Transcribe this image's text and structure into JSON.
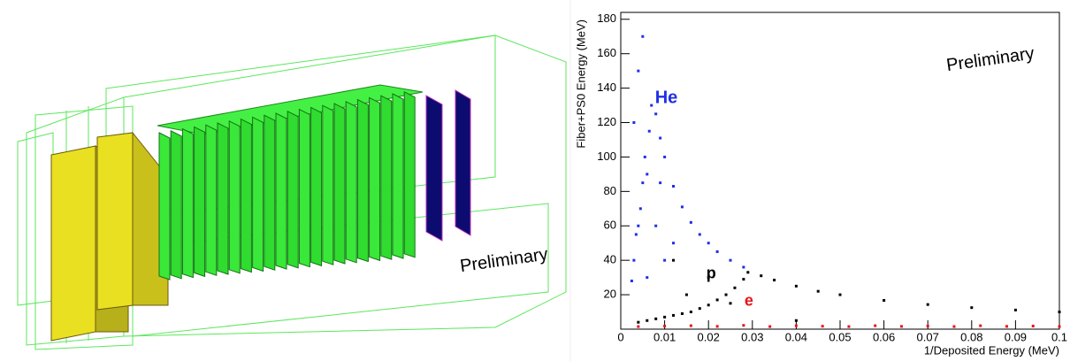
{
  "detector_view": {
    "label": "Preliminary"
  },
  "chart_data": {
    "type": "scatter",
    "x_label": "1/Deposited Energy (MeV)",
    "y_label": "Fiber+PS0 Energy (MeV)",
    "annotation": "Preliminary",
    "xlim": [
      0,
      0.1
    ],
    "xticks": [
      0,
      0.01,
      0.02,
      0.03,
      0.04,
      0.05,
      0.06,
      0.07,
      0.08,
      0.09,
      0.1
    ],
    "ylim": [
      0,
      184
    ],
    "yticks": [
      20,
      40,
      60,
      80,
      100,
      120,
      140,
      160,
      180
    ],
    "series": [
      {
        "name": "He",
        "color": "#1f2fe6",
        "x": [
          0.0025,
          0.003,
          0.0035,
          0.0045,
          0.005,
          0.0055,
          0.0065,
          0.007,
          0.008,
          0.009,
          0.01,
          0.012,
          0.014,
          0.016,
          0.018,
          0.02,
          0.022,
          0.025,
          0.028,
          0.004,
          0.005,
          0.003,
          0.006,
          0.004,
          0.008,
          0.01,
          0.006,
          0.012,
          0.009
        ],
        "y": [
          28,
          40,
          55,
          70,
          85,
          100,
          115,
          130,
          125,
          111,
          100,
          83,
          71,
          62,
          55,
          50,
          45,
          40,
          36,
          150,
          170,
          120,
          90,
          60,
          60,
          40,
          30,
          50,
          85
        ]
      },
      {
        "name": "p",
        "color": "#000000",
        "x": [
          0.004,
          0.006,
          0.008,
          0.01,
          0.012,
          0.014,
          0.016,
          0.018,
          0.02,
          0.022,
          0.024,
          0.026,
          0.028,
          0.029,
          0.032,
          0.035,
          0.04,
          0.045,
          0.05,
          0.06,
          0.07,
          0.08,
          0.09,
          0.1,
          0.015,
          0.02,
          0.025,
          0.04,
          0.012
        ],
        "y": [
          4,
          5,
          6,
          7,
          8,
          9,
          10,
          12,
          14,
          17,
          20,
          24,
          29,
          33,
          31,
          28.5,
          25,
          22,
          20,
          16.7,
          14.3,
          12.5,
          11.1,
          10,
          20,
          30,
          15,
          5,
          40
        ]
      },
      {
        "name": "e",
        "color": "#e8141a",
        "x": [
          0.004,
          0.01,
          0.016,
          0.022,
          0.028,
          0.034,
          0.04,
          0.046,
          0.052,
          0.058,
          0.064,
          0.07,
          0.076,
          0.082,
          0.088,
          0.094,
          0.1
        ],
        "y": [
          1.5,
          1.8,
          2,
          1.6,
          2.2,
          1.5,
          2,
          1.7,
          1.5,
          2,
          1.6,
          1.8,
          1.5,
          2,
          1.6,
          1.8,
          1.5
        ]
      }
    ]
  }
}
